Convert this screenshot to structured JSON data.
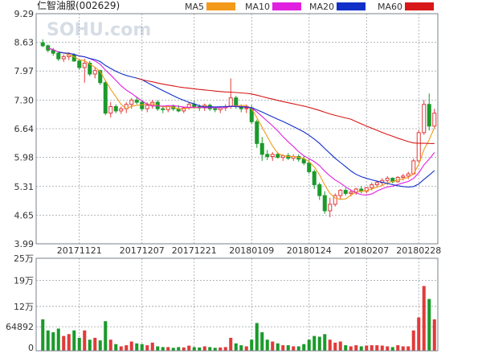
{
  "title": "仁智油服(002629)",
  "watermark": "SOHU.com",
  "colors": {
    "up": "#e23a3a",
    "down": "#1a9a2a",
    "ma5": "#f39a1a",
    "ma10": "#e020e0",
    "ma20": "#1030c8",
    "ma60": "#d81818",
    "grid": "#9aa0a8"
  },
  "chart_data": {
    "type": "candlestick",
    "legend": [
      {
        "name": "MA5",
        "color": "#f39a1a"
      },
      {
        "name": "MA10",
        "color": "#e020e0"
      },
      {
        "name": "MA20",
        "color": "#1030c8"
      },
      {
        "name": "MA60",
        "color": "#d81818"
      }
    ],
    "price_axis": {
      "ticks": [
        "9.29",
        "8.63",
        "7.97",
        "7.30",
        "6.64",
        "5.98",
        "5.31",
        "4.65",
        "3.99"
      ],
      "min": 3.99,
      "max": 9.29
    },
    "volume_axis": {
      "ticks": [
        "25万",
        "19万",
        "12万",
        "64892",
        "0"
      ],
      "values": [
        250000,
        190000,
        120000,
        64892,
        0
      ],
      "max": 250000
    },
    "x_tick_labels": [
      {
        "label": "20171121",
        "index": 7
      },
      {
        "label": "20171207",
        "index": 19
      },
      {
        "label": "20171221",
        "index": 29
      },
      {
        "label": "20180109",
        "index": 40
      },
      {
        "label": "20180124",
        "index": 51
      },
      {
        "label": "20180207",
        "index": 62
      },
      {
        "label": "20180228",
        "index": 72
      }
    ],
    "candles": [
      [
        8.62,
        8.7,
        8.52,
        8.55,
        85000
      ],
      [
        8.55,
        8.58,
        8.4,
        8.45,
        55000
      ],
      [
        8.45,
        8.5,
        8.32,
        8.38,
        50000
      ],
      [
        8.38,
        8.42,
        8.2,
        8.25,
        60000
      ],
      [
        8.25,
        8.35,
        8.18,
        8.3,
        40000
      ],
      [
        8.3,
        8.4,
        8.22,
        8.34,
        45000
      ],
      [
        8.34,
        8.38,
        8.18,
        8.2,
        55000
      ],
      [
        8.2,
        8.25,
        8.0,
        8.05,
        35000
      ],
      [
        8.05,
        8.25,
        7.7,
        8.15,
        55000
      ],
      [
        8.15,
        8.2,
        7.85,
        7.9,
        30000
      ],
      [
        7.9,
        8.05,
        7.8,
        7.98,
        35000
      ],
      [
        7.98,
        8.0,
        7.65,
        7.7,
        28000
      ],
      [
        7.7,
        7.75,
        6.95,
        7.0,
        80000
      ],
      [
        7.0,
        7.25,
        6.9,
        7.15,
        30000
      ],
      [
        7.15,
        7.2,
        7.0,
        7.05,
        18000
      ],
      [
        7.05,
        7.15,
        6.98,
        7.1,
        12000
      ],
      [
        7.1,
        7.25,
        7.0,
        7.2,
        15000
      ],
      [
        7.2,
        7.35,
        7.1,
        7.3,
        25000
      ],
      [
        7.3,
        7.38,
        7.2,
        7.25,
        20000
      ],
      [
        7.25,
        7.3,
        7.05,
        7.1,
        18000
      ],
      [
        7.1,
        7.25,
        7.02,
        7.18,
        15000
      ],
      [
        7.18,
        7.3,
        7.1,
        7.25,
        22000
      ],
      [
        7.25,
        7.3,
        7.05,
        7.1,
        12000
      ],
      [
        7.1,
        7.15,
        7.0,
        7.08,
        10000
      ],
      [
        7.08,
        7.18,
        7.02,
        7.15,
        10000
      ],
      [
        7.15,
        7.2,
        7.05,
        7.1,
        8000
      ],
      [
        7.1,
        7.18,
        7.02,
        7.05,
        10000
      ],
      [
        7.05,
        7.15,
        7.0,
        7.12,
        9000
      ],
      [
        7.12,
        7.25,
        7.08,
        7.2,
        14000
      ],
      [
        7.2,
        7.28,
        7.1,
        7.15,
        10000
      ],
      [
        7.15,
        7.2,
        7.05,
        7.12,
        9000
      ],
      [
        7.12,
        7.22,
        7.05,
        7.18,
        12000
      ],
      [
        7.18,
        7.22,
        7.05,
        7.1,
        10000
      ],
      [
        7.1,
        7.15,
        7.02,
        7.08,
        8000
      ],
      [
        7.08,
        7.15,
        7.0,
        7.12,
        9000
      ],
      [
        7.12,
        7.2,
        7.05,
        7.15,
        10000
      ],
      [
        7.15,
        7.8,
        7.1,
        7.35,
        35000
      ],
      [
        7.35,
        7.4,
        7.1,
        7.15,
        20000
      ],
      [
        7.15,
        7.2,
        7.02,
        7.1,
        15000
      ],
      [
        7.1,
        7.2,
        7.0,
        7.12,
        12000
      ],
      [
        7.12,
        7.18,
        6.75,
        6.8,
        30000
      ],
      [
        6.8,
        6.85,
        6.2,
        6.3,
        75000
      ],
      [
        6.3,
        6.45,
        5.9,
        6.05,
        50000
      ],
      [
        6.05,
        6.15,
        5.92,
        6.0,
        30000
      ],
      [
        6.0,
        6.1,
        5.9,
        6.05,
        25000
      ],
      [
        6.05,
        6.1,
        5.95,
        5.98,
        20000
      ],
      [
        5.98,
        6.05,
        5.9,
        6.02,
        15000
      ],
      [
        6.02,
        6.08,
        5.92,
        5.96,
        15000
      ],
      [
        5.96,
        6.05,
        5.9,
        6.0,
        12000
      ],
      [
        6.0,
        6.05,
        5.88,
        5.94,
        12000
      ],
      [
        5.94,
        6.0,
        5.8,
        5.85,
        18000
      ],
      [
        5.85,
        5.95,
        5.6,
        5.65,
        30000
      ],
      [
        5.65,
        5.7,
        5.25,
        5.35,
        40000
      ],
      [
        5.35,
        5.4,
        5.0,
        5.1,
        38000
      ],
      [
        5.1,
        5.2,
        4.68,
        4.75,
        45000
      ],
      [
        4.75,
        5.05,
        4.6,
        4.9,
        30000
      ],
      [
        4.9,
        5.15,
        4.85,
        5.1,
        22000
      ],
      [
        5.1,
        5.25,
        5.0,
        5.22,
        25000
      ],
      [
        5.22,
        5.28,
        5.1,
        5.15,
        15000
      ],
      [
        5.15,
        5.22,
        5.08,
        5.18,
        12000
      ],
      [
        5.18,
        5.28,
        5.12,
        5.25,
        15000
      ],
      [
        5.25,
        5.32,
        5.15,
        5.2,
        12000
      ],
      [
        5.2,
        5.3,
        5.15,
        5.28,
        14000
      ],
      [
        5.28,
        5.4,
        5.22,
        5.35,
        15000
      ],
      [
        5.35,
        5.45,
        5.28,
        5.4,
        15000
      ],
      [
        5.4,
        5.5,
        5.32,
        5.45,
        14000
      ],
      [
        5.45,
        5.55,
        5.35,
        5.5,
        12000
      ],
      [
        5.5,
        5.52,
        5.38,
        5.42,
        10000
      ],
      [
        5.42,
        5.55,
        5.4,
        5.52,
        15000
      ],
      [
        5.52,
        5.6,
        5.45,
        5.55,
        12000
      ],
      [
        5.55,
        5.65,
        5.48,
        5.6,
        12000
      ],
      [
        5.6,
        5.95,
        5.58,
        5.9,
        55000
      ],
      [
        5.9,
        6.6,
        5.88,
        6.55,
        90000
      ],
      [
        6.55,
        7.3,
        6.5,
        7.2,
        175000
      ],
      [
        7.2,
        7.45,
        6.6,
        6.7,
        140000
      ],
      [
        6.7,
        7.1,
        6.65,
        7.0,
        85000
      ]
    ]
  }
}
